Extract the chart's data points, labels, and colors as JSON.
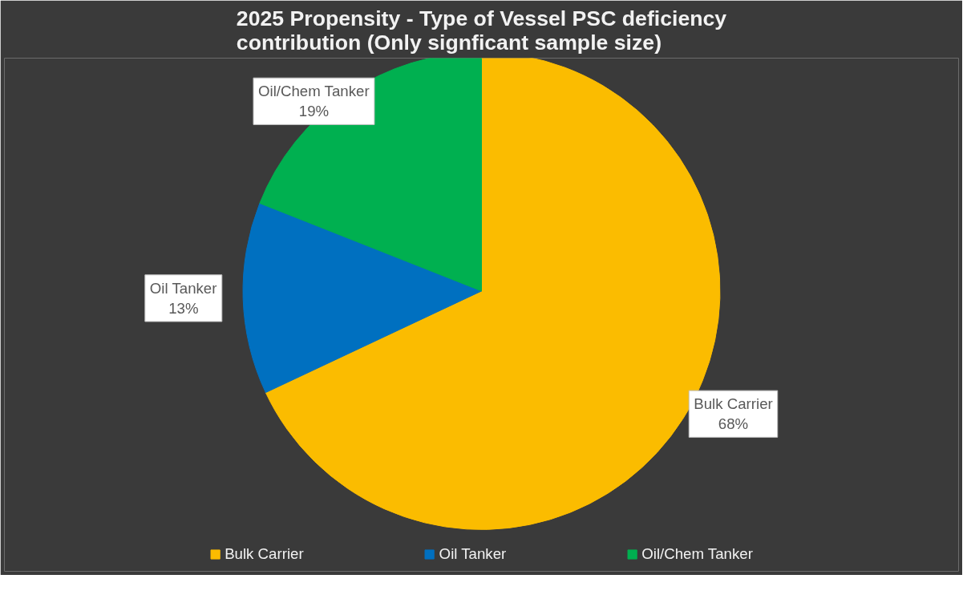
{
  "chart_data": {
    "type": "pie",
    "title": "2025 Propensity - Type of Vessel PSC deficiency contribution (Only signficant sample size)",
    "categories": [
      "Bulk Carrier",
      "Oil Tanker",
      "Oil/Chem Tanker"
    ],
    "values": [
      68,
      13,
      19
    ],
    "colors": [
      "#fbbc00",
      "#0070c0",
      "#00b050"
    ],
    "value_labels": [
      "68%",
      "13%",
      "19%"
    ],
    "legend": "bottom"
  }
}
